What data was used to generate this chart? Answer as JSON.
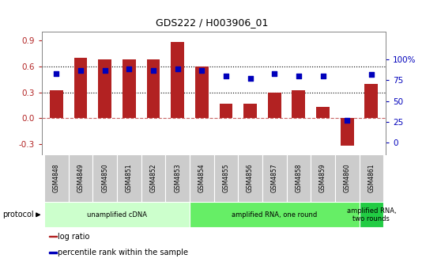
{
  "title": "GDS222 / H003906_01",
  "samples": [
    "GSM4848",
    "GSM4849",
    "GSM4850",
    "GSM4851",
    "GSM4852",
    "GSM4853",
    "GSM4854",
    "GSM4855",
    "GSM4856",
    "GSM4857",
    "GSM4858",
    "GSM4859",
    "GSM4860",
    "GSM4861"
  ],
  "log_ratio": [
    0.32,
    0.7,
    0.68,
    0.68,
    0.68,
    0.88,
    0.6,
    0.17,
    0.17,
    0.3,
    0.32,
    0.13,
    -0.32,
    0.4
  ],
  "percentile_rank": [
    83,
    87,
    87,
    89,
    87,
    89,
    87,
    80,
    77,
    83,
    80,
    80,
    27,
    82
  ],
  "bar_color": "#B22222",
  "dot_color": "#0000BB",
  "ylim_left": [
    -0.42,
    1.0
  ],
  "ylim_right": [
    -14,
    133
  ],
  "yticks_left": [
    -0.3,
    0.0,
    0.3,
    0.6,
    0.9
  ],
  "yticks_right": [
    0,
    25,
    50,
    75,
    100
  ],
  "ytick_labels_right": [
    "0",
    "25",
    "50",
    "75",
    "100%"
  ],
  "hline_y": [
    0.3,
    0.6
  ],
  "zero_line_y": 0.0,
  "protocol_groups": [
    {
      "label": "unamplified cDNA",
      "start": 0,
      "end": 5,
      "color": "#CCFFCC"
    },
    {
      "label": "amplified RNA, one round",
      "start": 6,
      "end": 12,
      "color": "#66EE66"
    },
    {
      "label": "amplified RNA,\ntwo rounds",
      "start": 13,
      "end": 13,
      "color": "#22CC44"
    }
  ],
  "protocol_label": "protocol",
  "legend_items": [
    {
      "color": "#B22222",
      "label": "log ratio"
    },
    {
      "color": "#0000BB",
      "label": "percentile rank within the sample"
    }
  ],
  "background_color": "#FFFFFF",
  "bar_width": 0.55,
  "sample_box_color": "#CCCCCC",
  "spine_color": "#888888"
}
